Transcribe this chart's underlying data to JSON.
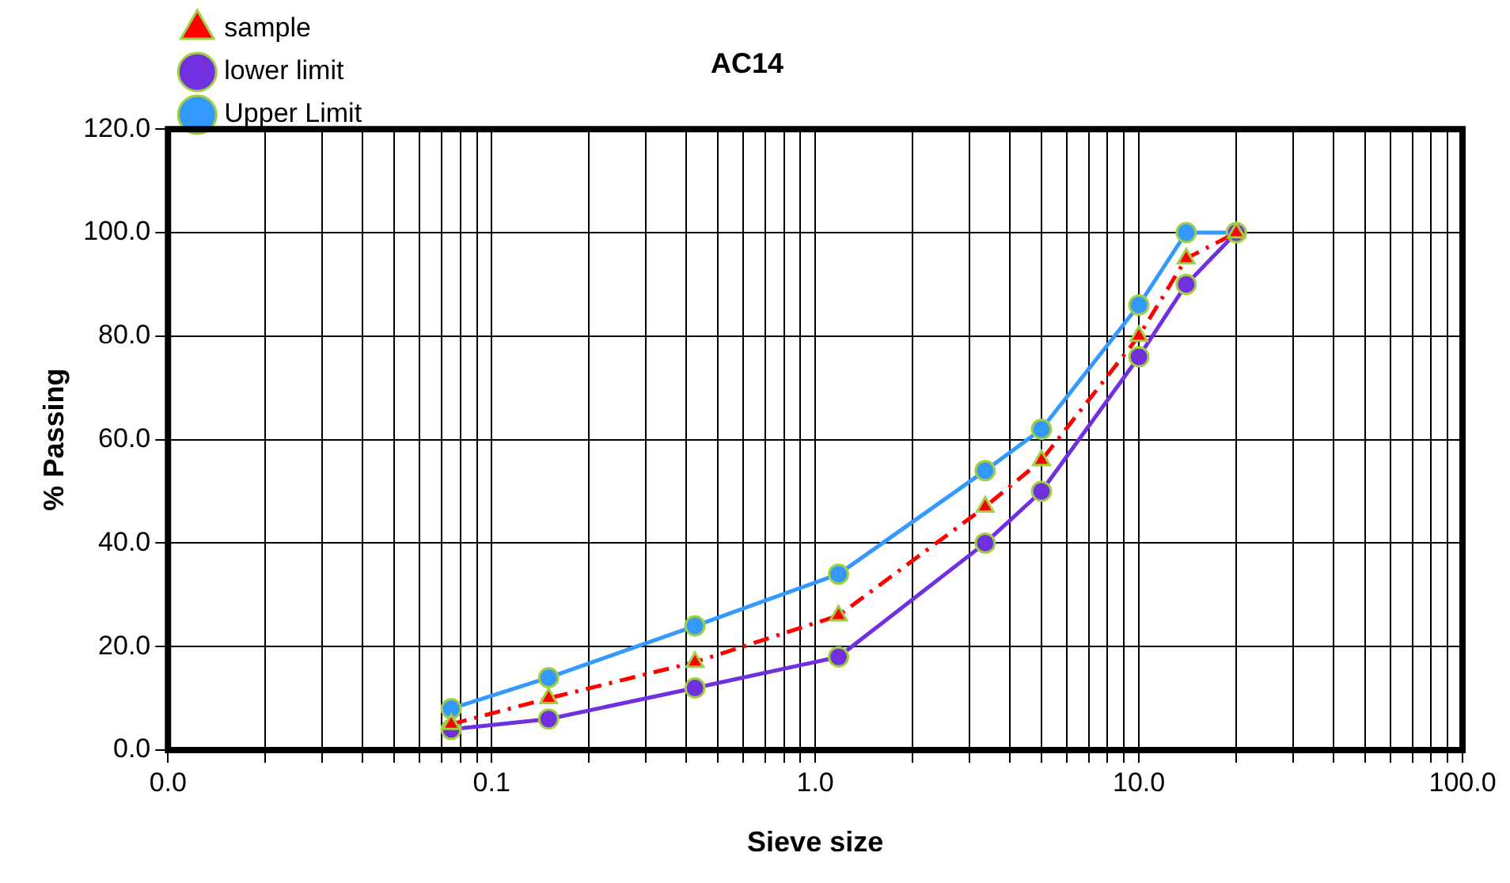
{
  "chart_data": {
    "type": "line",
    "title": "AC14",
    "xlabel": "Sieve size",
    "ylabel": "% Passing",
    "log": "x",
    "grid": true,
    "legend": "top left",
    "xlim": [
      0.01,
      100
    ],
    "xticks": [
      {
        "value": 0.01,
        "label": "0.0"
      },
      {
        "value": 0.02,
        "label": null
      },
      {
        "value": 0.03,
        "label": null
      },
      {
        "value": 0.04,
        "label": null
      },
      {
        "value": 0.05,
        "label": null
      },
      {
        "value": 0.06,
        "label": null
      },
      {
        "value": 0.07,
        "label": null
      },
      {
        "value": 0.08,
        "label": null
      },
      {
        "value": 0.09,
        "label": null
      },
      {
        "value": 0.1,
        "label": "0.1"
      },
      {
        "value": 0.2,
        "label": null
      },
      {
        "value": 0.3,
        "label": null
      },
      {
        "value": 0.4,
        "label": null
      },
      {
        "value": 0.5,
        "label": null
      },
      {
        "value": 0.6,
        "label": null
      },
      {
        "value": 0.7,
        "label": null
      },
      {
        "value": 0.8,
        "label": null
      },
      {
        "value": 0.9,
        "label": null
      },
      {
        "value": 1,
        "label": "1.0"
      },
      {
        "value": 2,
        "label": null
      },
      {
        "value": 3,
        "label": null
      },
      {
        "value": 4,
        "label": null
      },
      {
        "value": 5,
        "label": null
      },
      {
        "value": 6,
        "label": null
      },
      {
        "value": 7,
        "label": null
      },
      {
        "value": 8,
        "label": null
      },
      {
        "value": 9,
        "label": null
      },
      {
        "value": 10,
        "label": "10.0"
      },
      {
        "value": 20,
        "label": null
      },
      {
        "value": 30,
        "label": null
      },
      {
        "value": 40,
        "label": null
      },
      {
        "value": 50,
        "label": null
      },
      {
        "value": 60,
        "label": null
      },
      {
        "value": 70,
        "label": null
      },
      {
        "value": 80,
        "label": null
      },
      {
        "value": 90,
        "label": null
      },
      {
        "value": 100,
        "label": "100.0"
      }
    ],
    "ylim": [
      0,
      120
    ],
    "yticks": [
      {
        "value": 0,
        "label": "0.0"
      },
      {
        "value": 20,
        "label": "20.0"
      },
      {
        "value": 40,
        "label": "40.0"
      },
      {
        "value": 60,
        "label": "60.0"
      },
      {
        "value": 80,
        "label": "80.0"
      },
      {
        "value": 100,
        "label": "100.0"
      },
      {
        "value": 120,
        "label": "120.0"
      }
    ],
    "x": [
      0.075,
      0.15,
      0.425,
      1.18,
      3.35,
      5,
      10,
      14,
      20
    ],
    "series": [
      {
        "name": "sample",
        "color": "#ff0000",
        "line_style": "dashed",
        "marker": "triangle",
        "values": [
          5,
          10,
          17,
          26,
          47,
          56,
          80,
          95,
          100
        ]
      },
      {
        "name": "lower limit",
        "color": "#7030e0",
        "line_style": "solid",
        "marker": "circle",
        "values": [
          4,
          6,
          12,
          18,
          40,
          50,
          76,
          90,
          100
        ]
      },
      {
        "name": "Upper Limit",
        "color": "#3399ff",
        "line_style": "solid",
        "marker": "circle",
        "values": [
          8,
          14,
          24,
          34,
          54,
          62,
          86,
          100,
          100
        ]
      }
    ]
  }
}
